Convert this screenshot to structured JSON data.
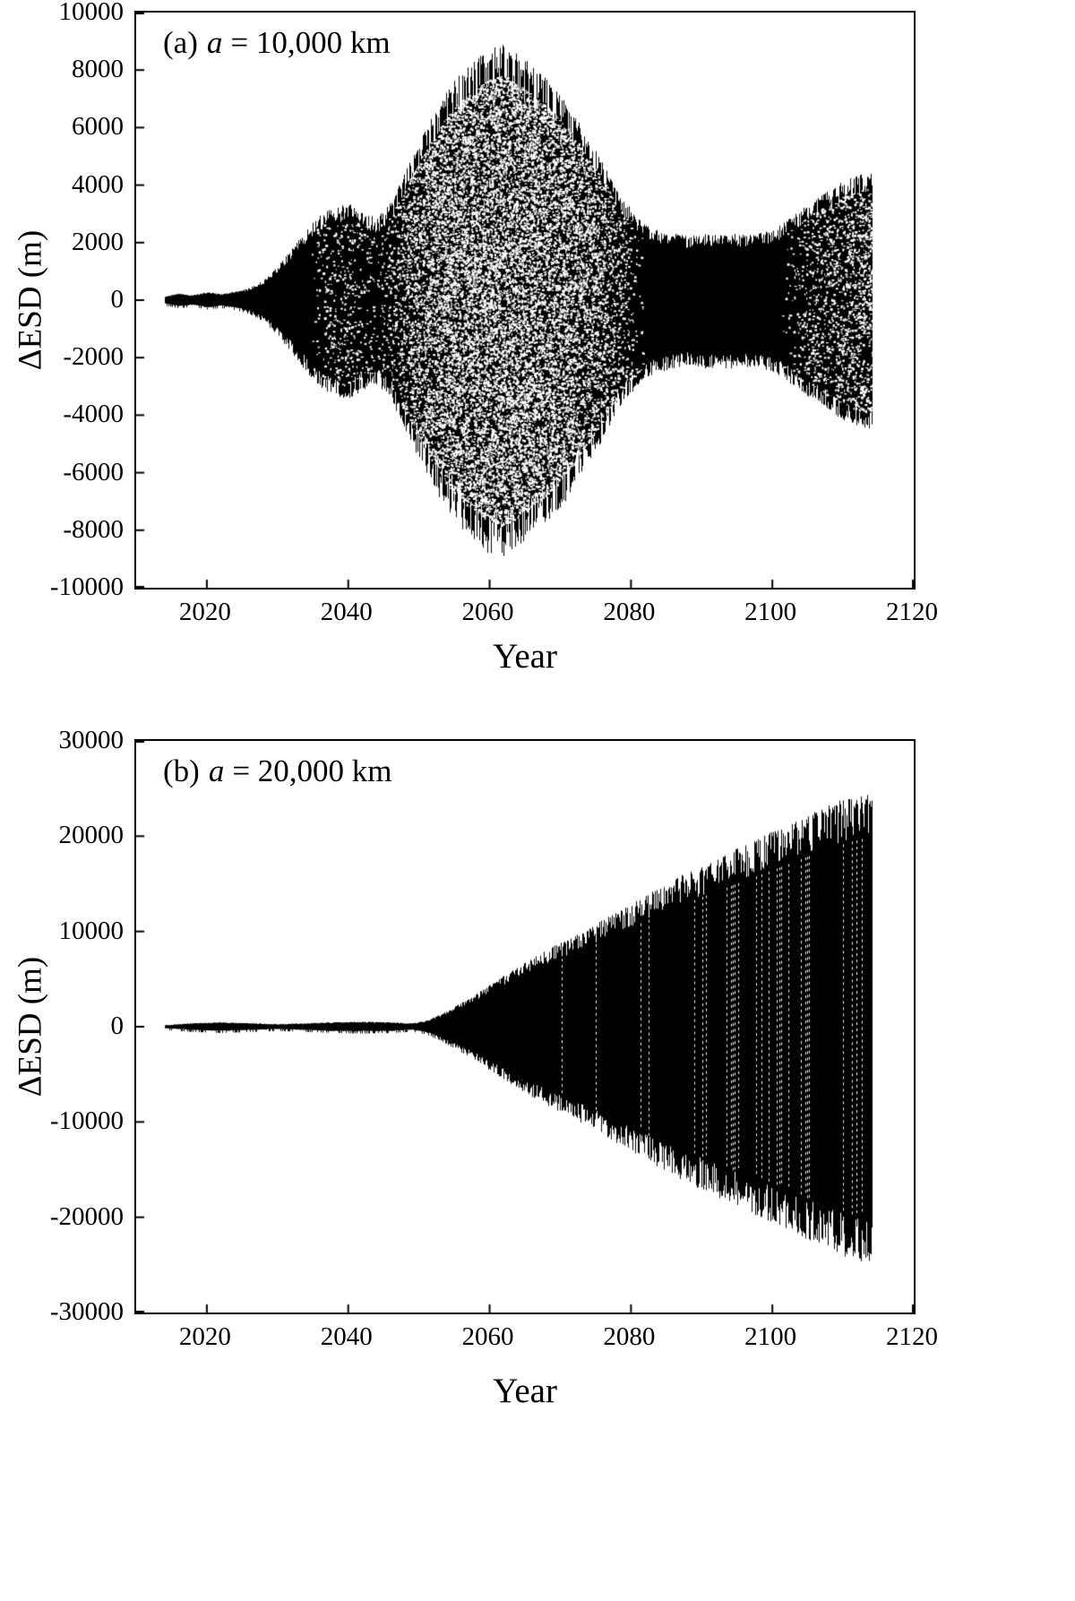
{
  "figure": {
    "background": "#ffffff",
    "ink": "#000000"
  },
  "chart_data": [
    {
      "type": "line",
      "representation": "dense-oscillation-envelope",
      "panel_prefix": "(a)",
      "param_symbol": "a",
      "param_rest": "= 10,000 km",
      "xlabel": "Year",
      "ylabel": "ΔESD (m)",
      "xlim": [
        2010,
        2120
      ],
      "ylim": [
        -10000,
        10000
      ],
      "xticks": [
        2020,
        2040,
        2060,
        2080,
        2100,
        2120
      ],
      "yticks": [
        -10000,
        -8000,
        -6000,
        -4000,
        -2000,
        0,
        2000,
        4000,
        6000,
        8000,
        10000
      ],
      "series_start_year": 2014,
      "series_end_year": 2114,
      "speckle": true,
      "striations": false,
      "envelope": [
        [
          2014,
          120
        ],
        [
          2016,
          220
        ],
        [
          2018,
          160
        ],
        [
          2020,
          260
        ],
        [
          2022,
          200
        ],
        [
          2024,
          280
        ],
        [
          2026,
          400
        ],
        [
          2028,
          650
        ],
        [
          2030,
          1100
        ],
        [
          2032,
          1700
        ],
        [
          2034,
          2300
        ],
        [
          2036,
          2800
        ],
        [
          2038,
          3100
        ],
        [
          2040,
          3200
        ],
        [
          2042,
          2900
        ],
        [
          2044,
          2700
        ],
        [
          2046,
          3200
        ],
        [
          2048,
          4200
        ],
        [
          2050,
          5200
        ],
        [
          2052,
          6100
        ],
        [
          2054,
          6900
        ],
        [
          2056,
          7500
        ],
        [
          2058,
          7900
        ],
        [
          2060,
          8300
        ],
        [
          2062,
          8400
        ],
        [
          2064,
          8100
        ],
        [
          2066,
          7700
        ],
        [
          2068,
          7300
        ],
        [
          2070,
          6800
        ],
        [
          2072,
          6100
        ],
        [
          2074,
          5300
        ],
        [
          2076,
          4500
        ],
        [
          2078,
          3600
        ],
        [
          2080,
          3000
        ],
        [
          2082,
          2500
        ],
        [
          2084,
          2300
        ],
        [
          2086,
          2200
        ],
        [
          2088,
          2100
        ],
        [
          2090,
          2200
        ],
        [
          2092,
          2150
        ],
        [
          2094,
          2200
        ],
        [
          2096,
          2150
        ],
        [
          2098,
          2200
        ],
        [
          2100,
          2300
        ],
        [
          2102,
          2600
        ],
        [
          2104,
          3000
        ],
        [
          2106,
          3300
        ],
        [
          2108,
          3600
        ],
        [
          2110,
          3900
        ],
        [
          2112,
          4100
        ],
        [
          2114,
          4200
        ]
      ]
    },
    {
      "type": "line",
      "representation": "dense-oscillation-envelope",
      "panel_prefix": "(b)",
      "param_symbol": "a",
      "param_rest": "= 20,000 km",
      "xlabel": "Year",
      "ylabel": "ΔESD (m)",
      "xlim": [
        2010,
        2120
      ],
      "ylim": [
        -30000,
        30000
      ],
      "xticks": [
        2020,
        2040,
        2060,
        2080,
        2100,
        2120
      ],
      "yticks": [
        -30000,
        -20000,
        -10000,
        0,
        10000,
        20000,
        30000
      ],
      "series_start_year": 2014,
      "series_end_year": 2114,
      "speckle": false,
      "striations": true,
      "envelope": [
        [
          2014,
          150
        ],
        [
          2018,
          350
        ],
        [
          2022,
          450
        ],
        [
          2026,
          350
        ],
        [
          2030,
          250
        ],
        [
          2034,
          350
        ],
        [
          2038,
          450
        ],
        [
          2042,
          500
        ],
        [
          2046,
          450
        ],
        [
          2049,
          320
        ],
        [
          2051,
          600
        ],
        [
          2053,
          1200
        ],
        [
          2055,
          2000
        ],
        [
          2058,
          3200
        ],
        [
          2060,
          4200
        ],
        [
          2063,
          5500
        ],
        [
          2066,
          6800
        ],
        [
          2069,
          8000
        ],
        [
          2072,
          9000
        ],
        [
          2075,
          10200
        ],
        [
          2078,
          11400
        ],
        [
          2081,
          12600
        ],
        [
          2084,
          13800
        ],
        [
          2087,
          15000
        ],
        [
          2090,
          16000
        ],
        [
          2093,
          17000
        ],
        [
          2096,
          18000
        ],
        [
          2099,
          19000
        ],
        [
          2102,
          20000
        ],
        [
          2105,
          21000
        ],
        [
          2108,
          22000
        ],
        [
          2111,
          22800
        ],
        [
          2114,
          23500
        ]
      ]
    }
  ]
}
